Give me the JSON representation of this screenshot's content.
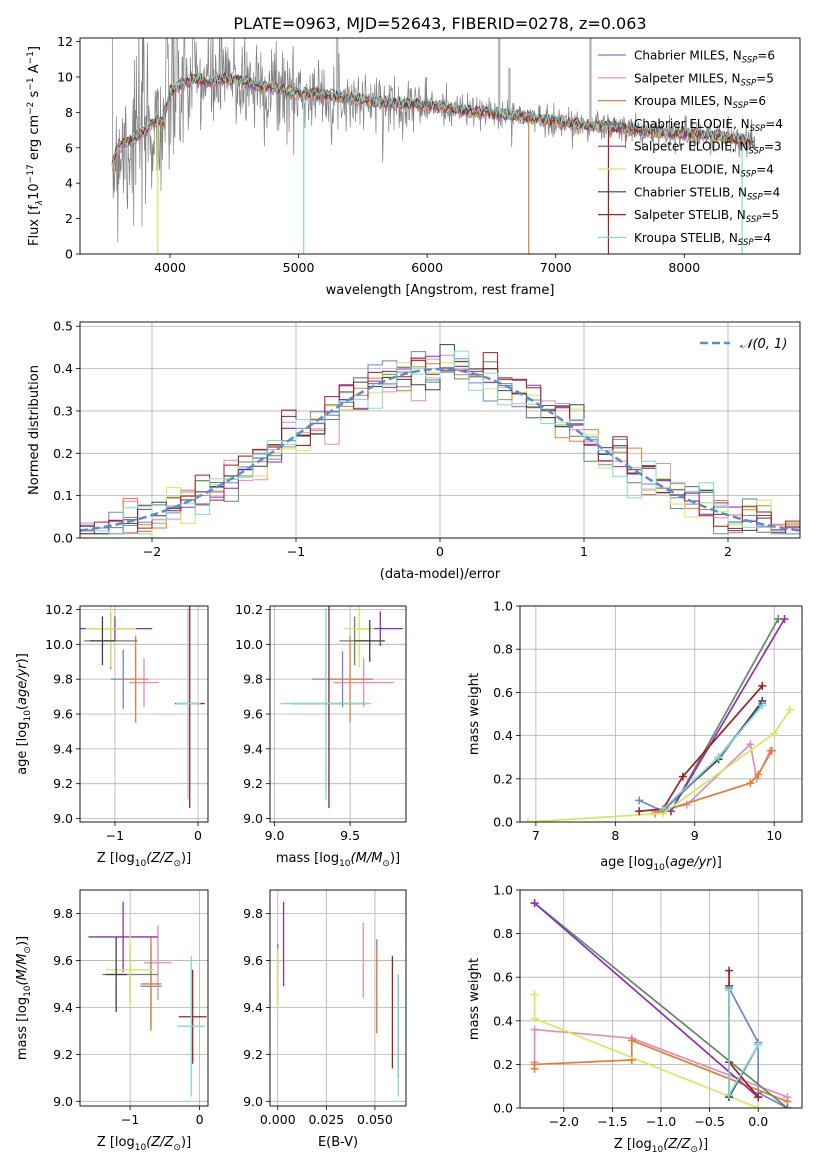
{
  "title": "PLATE=0963, MJD=52643, FIBERID=0278, z=0.063",
  "colors": {
    "Chabrier MILES": "#6a88c9",
    "Salpeter MILES": "#e38cbb",
    "Kroupa MILES": "#df7f30",
    "Chabrier ELODIE": "#5f8a6a",
    "Salpeter ELODIE": "#8e2fb0",
    "Kroupa ELODIE": "#d2e95d",
    "Chabrier STELIB": "#404040",
    "Salpeter STELIB": "#a31e1e",
    "Kroupa STELIB": "#83d8d8",
    "data": "#808080",
    "gauss": "#5b8bd0"
  },
  "chart_data": [
    {
      "type": "line",
      "xlabel": "wavelength [Angstrom, rest frame]",
      "ylabel_parts": [
        "Flux [f",
        "λ",
        "10",
        "−17",
        " erg cm",
        "−2",
        " s",
        "−1",
        " A",
        "−1",
        "]"
      ],
      "xlim": [
        3300,
        8900
      ],
      "ylim": [
        0,
        12.2
      ],
      "xticks": [
        4000,
        5000,
        6000,
        7000,
        8000
      ],
      "yticks": [
        0,
        2,
        4,
        6,
        8,
        10,
        12
      ],
      "grid": false,
      "legend_placement": "top-right",
      "legend": [
        {
          "name": "Chabrier MILES",
          "nssp": "6"
        },
        {
          "name": "Salpeter MILES",
          "nssp": "5"
        },
        {
          "name": "Kroupa MILES",
          "nssp": "6"
        },
        {
          "name": "Chabrier ELODIE",
          "nssp": "4"
        },
        {
          "name": "Salpeter ELODIE",
          "nssp": "3"
        },
        {
          "name": "Kroupa ELODIE",
          "nssp": "4"
        },
        {
          "name": "Chabrier STELIB",
          "nssp": "4"
        },
        {
          "name": "Salpeter STELIB",
          "nssp": "5"
        },
        {
          "name": "Kroupa STELIB",
          "nssp": "4"
        }
      ],
      "nssp_prefix": "N",
      "nssp_sub": "SSP",
      "continuum": {
        "x": [
          3550,
          3600,
          3700,
          3800,
          3900,
          3950,
          4000,
          4100,
          4200,
          4300,
          4400,
          4500,
          4600,
          4700,
          4800,
          4900,
          5000,
          5200,
          5400,
          5600,
          5800,
          6000,
          6200,
          6400,
          6600,
          6800,
          7000,
          7200,
          7400,
          7600,
          7800,
          8000,
          8200,
          8400,
          8550
        ],
        "y": [
          5.0,
          6.1,
          6.4,
          7.0,
          7.6,
          7.4,
          9.2,
          9.6,
          9.9,
          9.7,
          9.9,
          9.8,
          9.7,
          9.5,
          9.4,
          9.2,
          9.1,
          9.0,
          8.8,
          8.6,
          8.5,
          8.4,
          8.2,
          8.0,
          7.9,
          7.7,
          7.5,
          7.3,
          7.2,
          7.0,
          6.9,
          6.8,
          6.7,
          6.5,
          6.3
        ]
      }
    },
    {
      "type": "line",
      "xlabel": "(data-model)/error",
      "ylabel": "Normed distribution",
      "xlim": [
        -2.5,
        2.5
      ],
      "ylim": [
        0,
        0.51
      ],
      "xticks": [
        -2,
        -1,
        0,
        1,
        2
      ],
      "yticks": [
        0.0,
        0.1,
        0.2,
        0.3,
        0.4,
        0.5
      ],
      "grid": true,
      "legend_placement": "top-right",
      "legend_label": "𝒩(0, 1)",
      "bin_width": 0.1
    },
    {
      "type": "scatter",
      "name": "age-vs-metallicity",
      "xlabel_main": "Z [log",
      "xlabel_sub": "10",
      "xlabel_rest": "(Z/Z",
      "xlabel_end": ")]",
      "ylabel": "age  [log10(age/yr)]",
      "xlim": [
        -1.42,
        0.12
      ],
      "ylim": [
        8.98,
        10.22
      ],
      "xticks": [
        -1,
        0
      ],
      "yticks": [
        9.0,
        9.2,
        9.4,
        9.6,
        9.8,
        10.0,
        10.2
      ],
      "grid": true,
      "points": [
        {
          "model": "Chabrier MILES",
          "x": -0.9,
          "y": 9.8,
          "xerr": 0.15,
          "yerr": 0.17
        },
        {
          "model": "Salpeter MILES",
          "x": -0.65,
          "y": 9.78,
          "xerr": 0.18,
          "yerr": 0.14
        },
        {
          "model": "Kroupa MILES",
          "x": -0.75,
          "y": 9.8,
          "xerr": 0.15,
          "yerr": 0.25
        },
        {
          "model": "Chabrier ELODIE",
          "x": -1.05,
          "y": 10.02,
          "xerr": 0.32,
          "yerr": 0.16
        },
        {
          "model": "Salpeter ELODIE",
          "x": -1.0,
          "y": 10.09,
          "xerr": 0.45,
          "yerr": 0.07
        },
        {
          "model": "Kroupa ELODIE",
          "x": -1.05,
          "y": 10.09,
          "xerr": 0.3,
          "yerr": 0.22
        },
        {
          "model": "Chabrier STELIB",
          "x": -1.15,
          "y": 10.02,
          "xerr": 0.15,
          "yerr": 0.14
        },
        {
          "model": "Salpeter STELIB",
          "x": -0.1,
          "y": 9.66,
          "xerr": 0.18,
          "yerr": 0.6
        },
        {
          "model": "Kroupa STELIB",
          "x": -0.12,
          "y": 9.66,
          "xerr": 0.15,
          "yerr": 0.55
        }
      ]
    },
    {
      "type": "scatter",
      "name": "age-vs-mass",
      "xlabel_main": "mass [log",
      "xlabel_sub": "10",
      "xlabel_rest": "(M/M",
      "xlabel_end": ")]",
      "ylabel": "",
      "xlim": [
        8.97,
        9.87
      ],
      "ylim": [
        8.98,
        10.22
      ],
      "xticks": [
        9.0,
        9.5
      ],
      "yticks": [
        9.0,
        9.2,
        9.4,
        9.6,
        9.8,
        10.0,
        10.2
      ],
      "grid": true,
      "points": [
        {
          "model": "Chabrier MILES",
          "x": 9.45,
          "y": 9.8,
          "xerr": 0.2,
          "yerr": 0.16
        },
        {
          "model": "Salpeter MILES",
          "x": 9.59,
          "y": 9.78,
          "xerr": 0.2,
          "yerr": 0.14
        },
        {
          "model": "Kroupa MILES",
          "x": 9.5,
          "y": 9.8,
          "xerr": 0.15,
          "yerr": 0.25
        },
        {
          "model": "Chabrier ELODIE",
          "x": 9.53,
          "y": 10.02,
          "xerr": 0.1,
          "yerr": 0.14
        },
        {
          "model": "Salpeter ELODIE",
          "x": 9.7,
          "y": 10.09,
          "xerr": 0.15,
          "yerr": 0.1
        },
        {
          "model": "Kroupa ELODIE",
          "x": 9.56,
          "y": 10.09,
          "xerr": 0.1,
          "yerr": 0.22
        },
        {
          "model": "Chabrier STELIB",
          "x": 9.63,
          "y": 10.02,
          "xerr": 0.1,
          "yerr": 0.12
        },
        {
          "model": "Salpeter STELIB",
          "x": 9.36,
          "y": 9.66,
          "xerr": 0.25,
          "yerr": 0.6
        },
        {
          "model": "Kroupa STELIB",
          "x": 9.34,
          "y": 9.66,
          "xerr": 0.3,
          "yerr": 0.55
        }
      ]
    },
    {
      "type": "line",
      "name": "mass-weight-vs-age",
      "xlabel": "age  [log10(age/yr)]",
      "ylabel": "mass weight",
      "xlim": [
        6.8,
        10.35
      ],
      "ylim": [
        0,
        1.0
      ],
      "xticks": [
        7,
        8,
        9,
        10
      ],
      "yticks": [
        0.0,
        0.2,
        0.4,
        0.6,
        0.8,
        1.0
      ],
      "grid": true,
      "series": [
        {
          "model": "Chabrier MILES",
          "points": [
            [
              8.3,
              0.1
            ],
            [
              8.6,
              0.05
            ],
            [
              9.3,
              0.3
            ],
            [
              9.85,
              0.55
            ]
          ]
        },
        {
          "model": "Salpeter MILES",
          "points": [
            [
              8.5,
              0.05
            ],
            [
              8.9,
              0.08
            ],
            [
              9.7,
              0.36
            ],
            [
              9.78,
              0.2
            ],
            [
              9.95,
              0.33
            ]
          ]
        },
        {
          "model": "Kroupa MILES",
          "points": [
            [
              8.5,
              0.04
            ],
            [
              9.7,
              0.18
            ],
            [
              9.8,
              0.22
            ],
            [
              9.97,
              0.33
            ]
          ]
        },
        {
          "model": "Chabrier ELODIE",
          "points": [
            [
              8.7,
              0.05
            ],
            [
              10.05,
              0.94
            ]
          ]
        },
        {
          "model": "Salpeter ELODIE",
          "points": [
            [
              8.7,
              0.05
            ],
            [
              10.13,
              0.94
            ]
          ]
        },
        {
          "model": "Kroupa ELODIE",
          "points": [
            [
              6.9,
              0.0
            ],
            [
              8.6,
              0.04
            ],
            [
              10.0,
              0.41
            ],
            [
              10.2,
              0.52
            ]
          ]
        },
        {
          "model": "Chabrier STELIB",
          "points": [
            [
              8.6,
              0.06
            ],
            [
              9.3,
              0.29
            ],
            [
              9.85,
              0.56
            ]
          ]
        },
        {
          "model": "Salpeter STELIB",
          "points": [
            [
              8.3,
              0.05
            ],
            [
              8.6,
              0.06
            ],
            [
              8.85,
              0.21
            ],
            [
              9.85,
              0.63
            ]
          ]
        },
        {
          "model": "Kroupa STELIB",
          "points": [
            [
              8.6,
              0.06
            ],
            [
              9.3,
              0.3
            ],
            [
              9.85,
              0.54
            ]
          ]
        }
      ]
    },
    {
      "type": "scatter",
      "name": "mass-vs-metallicity",
      "xlabel_main": "Z [log",
      "xlabel_sub": "10",
      "xlabel_rest": "(Z/Z",
      "xlabel_end": ")]",
      "ylabel_main": "mass [log",
      "ylabel_sub": "10",
      "ylabel_rest": "(M/M",
      "ylabel_end": ")]",
      "xlim": [
        -1.72,
        0.12
      ],
      "ylim": [
        8.98,
        9.9
      ],
      "xticks": [
        -1,
        0
      ],
      "yticks": [
        9.0,
        9.2,
        9.4,
        9.6,
        9.8
      ],
      "grid": true,
      "points": [
        {
          "model": "Chabrier MILES",
          "x": -0.7,
          "y": 9.49,
          "xerr": 0.15,
          "yerr": 0.18
        },
        {
          "model": "Salpeter MILES",
          "x": -0.6,
          "y": 9.59,
          "xerr": 0.2,
          "yerr": 0.16
        },
        {
          "model": "Kroupa MILES",
          "x": -0.7,
          "y": 9.5,
          "xerr": 0.15,
          "yerr": 0.2
        },
        {
          "model": "Chabrier ELODIE",
          "x": -1.0,
          "y": 9.54,
          "xerr": 0.4,
          "yerr": 0.12
        },
        {
          "model": "Salpeter ELODIE",
          "x": -1.1,
          "y": 9.7,
          "xerr": 0.5,
          "yerr": 0.15
        },
        {
          "model": "Kroupa ELODIE",
          "x": -1.0,
          "y": 9.56,
          "xerr": 0.35,
          "yerr": 0.16
        },
        {
          "model": "Chabrier STELIB",
          "x": -1.2,
          "y": 9.54,
          "xerr": 0.15,
          "yerr": 0.16
        },
        {
          "model": "Salpeter STELIB",
          "x": -0.1,
          "y": 9.36,
          "xerr": 0.2,
          "yerr": 0.2
        },
        {
          "model": "Kroupa STELIB",
          "x": -0.12,
          "y": 9.32,
          "xerr": 0.2,
          "yerr": 0.3
        }
      ]
    },
    {
      "type": "scatter",
      "name": "mass-vs-ebv",
      "xlabel": "E(B-V)",
      "ylabel": "",
      "xlim": [
        -0.004,
        0.066
      ],
      "ylim": [
        8.98,
        9.9
      ],
      "xticks": [
        0.0,
        0.025,
        0.05
      ],
      "xticklabels": [
        "0.000",
        "0.025",
        "0.050"
      ],
      "yticks": [
        9.0,
        9.2,
        9.4,
        9.6,
        9.8
      ],
      "grid": true,
      "points": [
        {
          "model": "Chabrier MILES",
          "x": 0.051,
          "y": 9.49,
          "yerr": 0.2
        },
        {
          "model": "Salpeter MILES",
          "x": 0.044,
          "y": 9.6,
          "yerr": 0.16
        },
        {
          "model": "Kroupa MILES",
          "x": 0.051,
          "y": 9.47,
          "yerr": 0.18
        },
        {
          "model": "Chabrier ELODIE",
          "x": 0.0,
          "y": 9.55,
          "yerr": 0.12
        },
        {
          "model": "Salpeter ELODIE",
          "x": 0.003,
          "y": 9.67,
          "yerr": 0.18
        },
        {
          "model": "Kroupa ELODIE",
          "x": 0.0,
          "y": 9.52,
          "yerr": 0.13
        },
        {
          "model": "Chabrier STELIB",
          "x": 0.062,
          "y": 9.32,
          "yerr": 0.22
        },
        {
          "model": "Salpeter STELIB",
          "x": 0.059,
          "y": 9.38,
          "yerr": 0.24
        },
        {
          "model": "Kroupa STELIB",
          "x": 0.062,
          "y": 9.28,
          "yerr": 0.26
        }
      ]
    },
    {
      "type": "line",
      "name": "mass-weight-vs-metallicity",
      "xlabel_main": "Z [log",
      "xlabel_sub": "10",
      "xlabel_rest": "(Z/Z",
      "xlabel_end": ")]",
      "ylabel": "mass weight",
      "xlim": [
        -2.45,
        0.45
      ],
      "ylim": [
        0,
        1.0
      ],
      "xticks": [
        -2.0,
        -1.5,
        -1.0,
        -0.5,
        0.0
      ],
      "xticklabels": [
        "−2.0",
        "−1.5",
        "−1.0",
        "−0.5",
        "0.0"
      ],
      "yticks": [
        0.0,
        0.2,
        0.4,
        0.6,
        0.8,
        1.0
      ],
      "grid": true,
      "series": [
        {
          "model": "Chabrier MILES",
          "points": [
            [
              -0.3,
              0.55
            ],
            [
              0.0,
              0.3
            ],
            [
              0.0,
              0.07
            ],
            [
              0.3,
              0.0
            ]
          ]
        },
        {
          "model": "Salpeter MILES",
          "points": [
            [
              -2.3,
              0.21
            ],
            [
              -2.3,
              0.36
            ],
            [
              -1.3,
              0.32
            ],
            [
              0.3,
              0.05
            ]
          ]
        },
        {
          "model": "Kroupa MILES",
          "points": [
            [
              -2.3,
              0.18
            ],
            [
              -2.3,
              0.2
            ],
            [
              -1.3,
              0.22
            ],
            [
              -1.3,
              0.31
            ],
            [
              0.3,
              0.03
            ]
          ]
        },
        {
          "model": "Chabrier ELODIE",
          "points": [
            [
              -2.3,
              0.94
            ],
            [
              0.3,
              0.0
            ]
          ]
        },
        {
          "model": "Salpeter ELODIE",
          "points": [
            [
              -2.3,
              0.94
            ],
            [
              0.0,
              0.05
            ]
          ]
        },
        {
          "model": "Kroupa ELODIE",
          "points": [
            [
              -2.3,
              0.52
            ],
            [
              -2.3,
              0.41
            ],
            [
              0.0,
              0.0
            ]
          ]
        },
        {
          "model": "Chabrier STELIB",
          "points": [
            [
              -0.3,
              0.56
            ],
            [
              -0.3,
              0.05
            ],
            [
              0.0,
              0.29
            ]
          ]
        },
        {
          "model": "Salpeter STELIB",
          "points": [
            [
              -0.3,
              0.63
            ],
            [
              -0.3,
              0.21
            ],
            [
              0.0,
              0.05
            ]
          ]
        },
        {
          "model": "Kroupa STELIB",
          "points": [
            [
              -0.3,
              0.54
            ],
            [
              -0.3,
              0.06
            ],
            [
              0.0,
              0.29
            ]
          ]
        }
      ]
    }
  ]
}
